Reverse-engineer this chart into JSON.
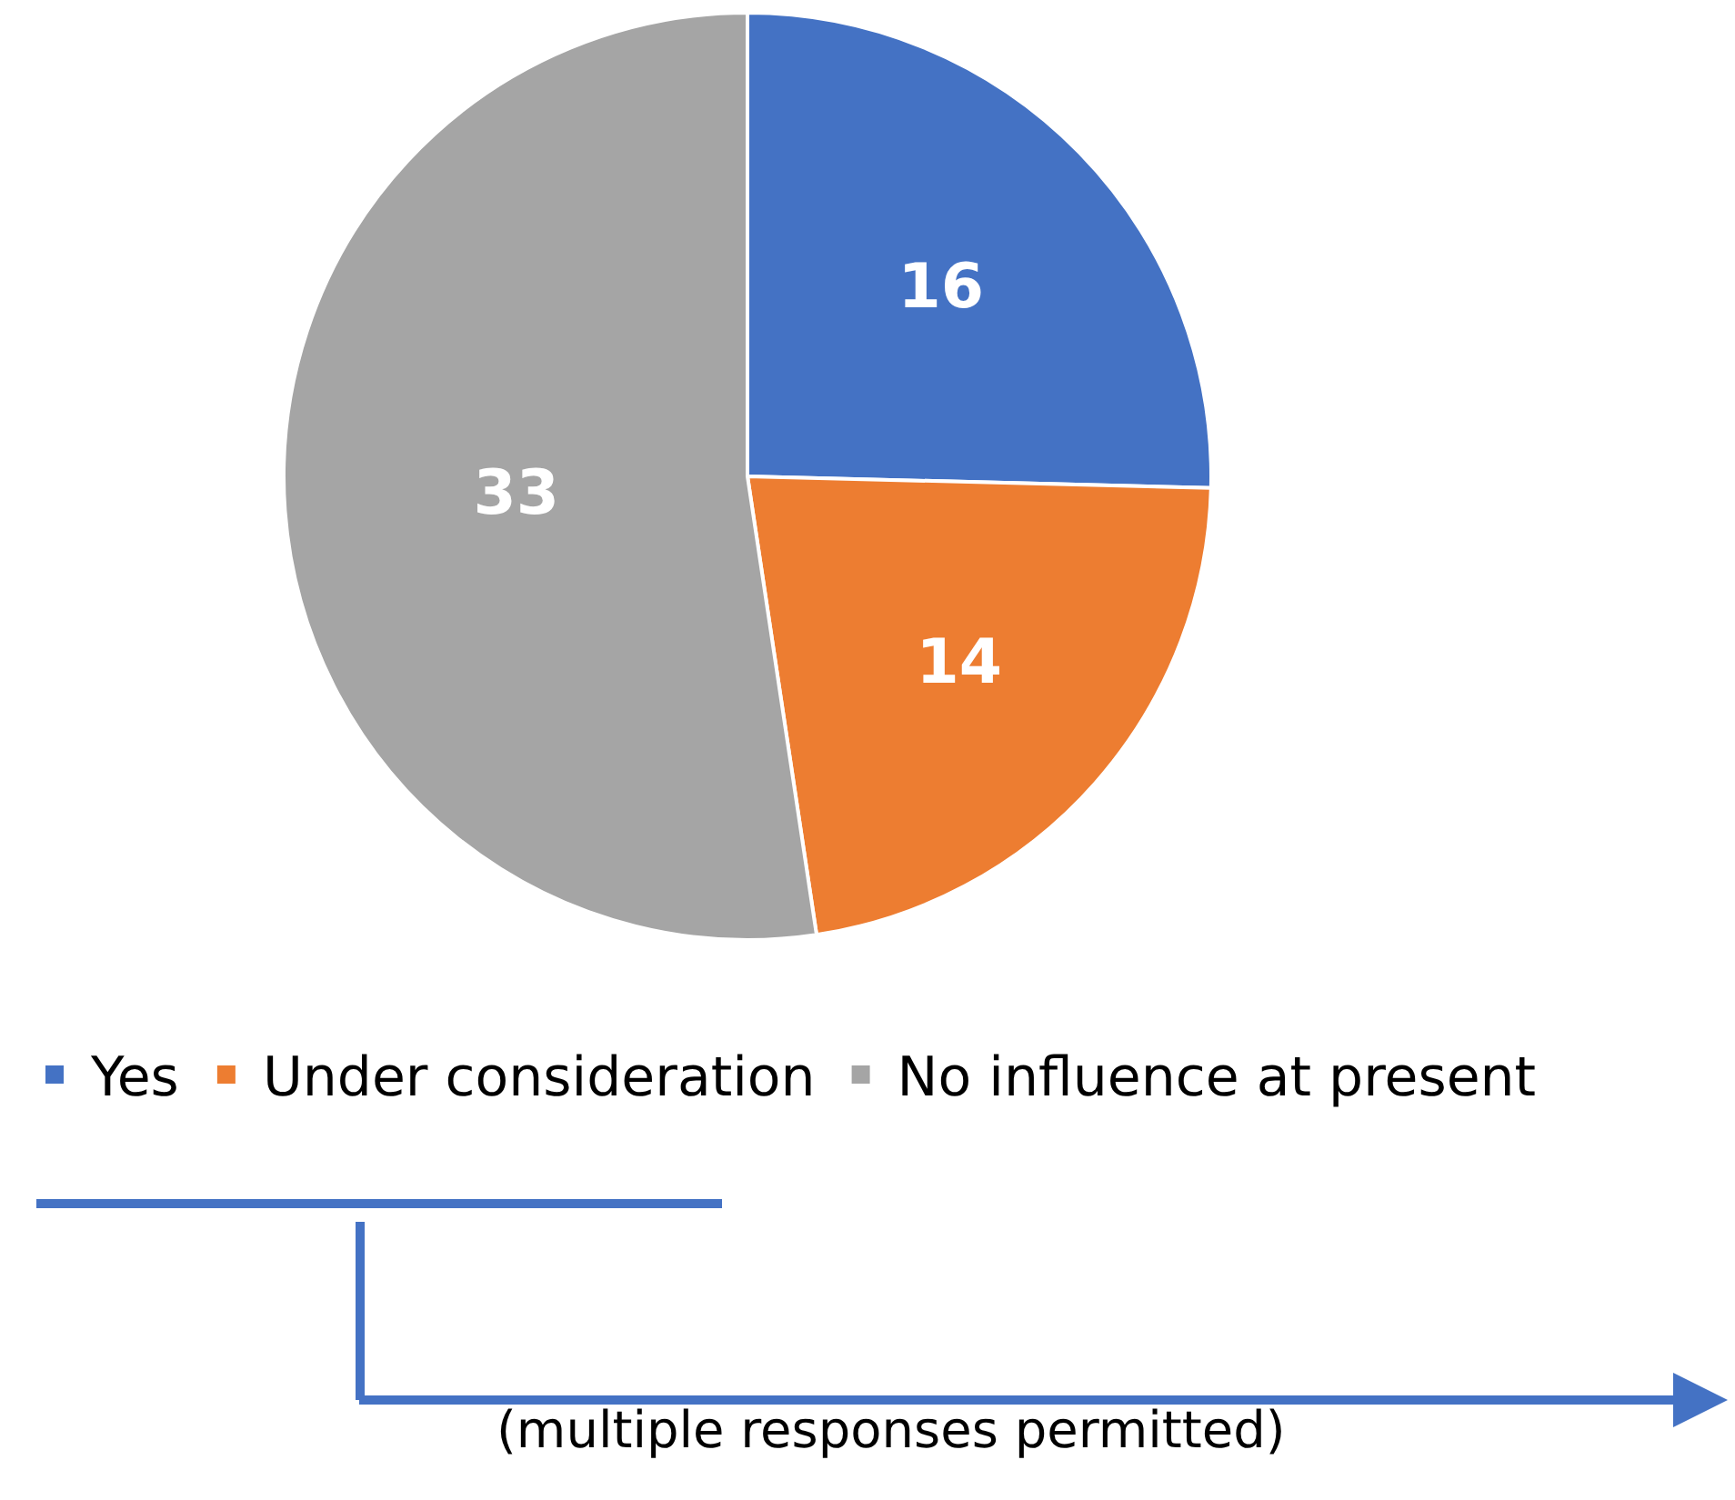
{
  "chart_data": {
    "type": "pie",
    "categories": [
      "Yes",
      "Under consideration",
      "No influence at present"
    ],
    "values": [
      16,
      14,
      33
    ],
    "colors": [
      "#4472c4",
      "#ed7d31",
      "#a5a5a5"
    ],
    "data_labels": true,
    "legend": "bottom",
    "annotations": [
      "(multiple responses permitted)"
    ]
  }
}
